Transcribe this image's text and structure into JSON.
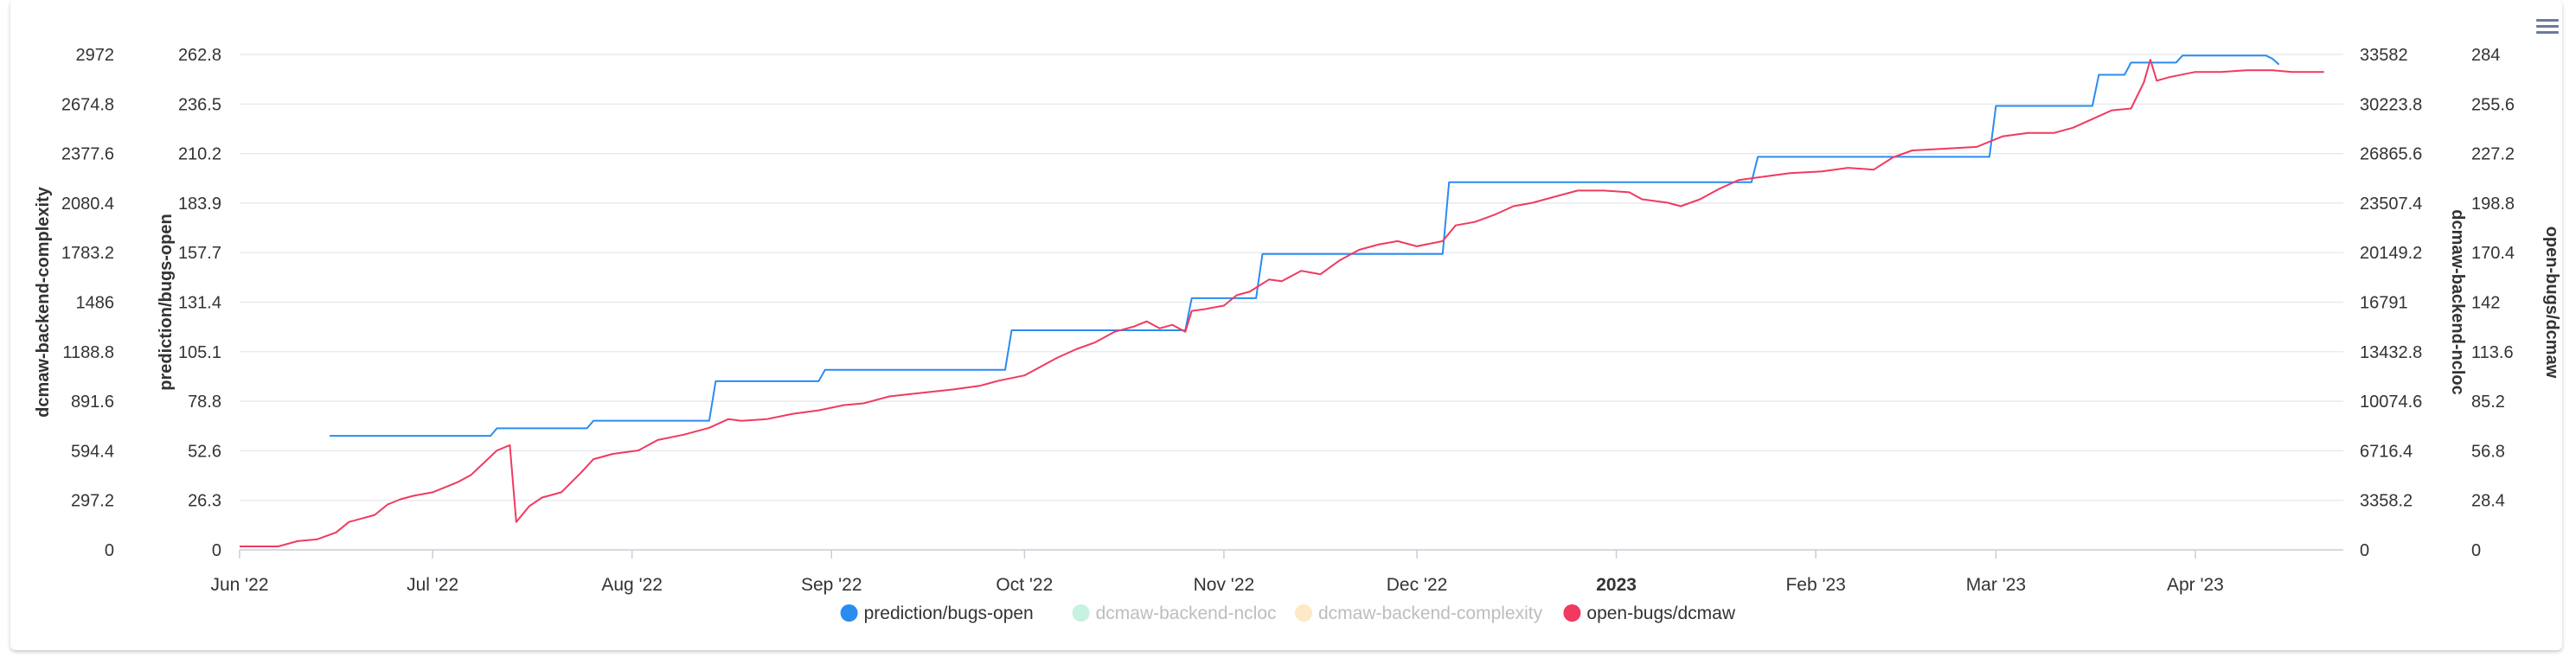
{
  "toolbar": {
    "menu_icon": "hamburger-menu-icon"
  },
  "chart_data": {
    "type": "line",
    "x_ticks": [
      "Jun '22",
      "Jul '22",
      "Aug '22",
      "Sep '22",
      "Oct '22",
      "Nov '22",
      "Dec '22",
      "2023",
      "Feb '23",
      "Mar '23",
      "Apr '23"
    ],
    "x_range": [
      "2022-06-01",
      "2023-04-24"
    ],
    "grid": true,
    "legend_placement": "bottom-center",
    "axes": [
      {
        "id": "complexity",
        "title": "dcmaw-backend-complexity",
        "side": "left",
        "min": 0,
        "max": 2972,
        "ticks": [
          "0",
          "297.2",
          "594.4",
          "891.6",
          "1188.8",
          "1486",
          "1783.2",
          "2080.4",
          "2377.6",
          "2674.8",
          "2972"
        ]
      },
      {
        "id": "prediction",
        "title": "prediction/bugs-open",
        "side": "left",
        "min": 0,
        "max": 262.8,
        "ticks": [
          "0",
          "26.3",
          "52.6",
          "78.8",
          "105.1",
          "131.4",
          "157.7",
          "183.9",
          "210.2",
          "236.5",
          "262.8"
        ]
      },
      {
        "id": "ncloc",
        "title": "dcmaw-backend-ncloc",
        "side": "right",
        "min": 0,
        "max": 33582,
        "ticks": [
          "0",
          "3358.2",
          "6716.4",
          "10074.6",
          "13432.8",
          "16791",
          "20149.2",
          "23507.4",
          "26865.6",
          "30223.8",
          "33582"
        ]
      },
      {
        "id": "openbugs",
        "title": "open-bugs/dcmaw",
        "side": "right",
        "min": 0,
        "max": 284,
        "ticks": [
          "0",
          "28.4",
          "56.8",
          "85.2",
          "113.6",
          "142",
          "170.4",
          "198.8",
          "227.2",
          "255.6",
          "284"
        ]
      }
    ],
    "series": [
      {
        "name": "prediction/bugs-open",
        "color": "#2a8cf0",
        "axis": "prediction",
        "visible": true,
        "step": true,
        "points": [
          [
            "2022-06-15",
            60.5
          ],
          [
            "2022-07-10",
            60.5
          ],
          [
            "2022-07-11",
            64.5
          ],
          [
            "2022-07-25",
            64.5
          ],
          [
            "2022-07-26",
            68.5
          ],
          [
            "2022-08-13",
            68.5
          ],
          [
            "2022-08-14",
            89.5
          ],
          [
            "2022-08-30",
            89.5
          ],
          [
            "2022-08-31",
            95.5
          ],
          [
            "2022-09-28",
            95.5
          ],
          [
            "2022-09-29",
            116.5
          ],
          [
            "2022-10-26",
            116.5
          ],
          [
            "2022-10-27",
            133.5
          ],
          [
            "2022-11-06",
            133.5
          ],
          [
            "2022-11-07",
            157
          ],
          [
            "2022-12-05",
            157
          ],
          [
            "2022-12-06",
            195
          ],
          [
            "2023-01-22",
            195
          ],
          [
            "2023-01-23",
            208.5
          ],
          [
            "2023-02-28",
            208.5
          ],
          [
            "2023-03-01",
            235.5
          ],
          [
            "2023-03-16",
            235.5
          ],
          [
            "2023-03-17",
            252
          ],
          [
            "2023-03-21",
            252
          ],
          [
            "2023-03-22",
            258.5
          ],
          [
            "2023-03-29",
            258.5
          ],
          [
            "2023-03-30",
            262.2
          ],
          [
            "2023-04-12",
            262.2
          ],
          [
            "2023-04-13",
            260.5
          ],
          [
            "2023-04-14",
            257.5
          ]
        ]
      },
      {
        "name": "dcmaw-backend-ncloc",
        "color": "#c6f2df",
        "axis": "ncloc",
        "visible": false,
        "points": []
      },
      {
        "name": "dcmaw-backend-complexity",
        "color": "#fde9c7",
        "axis": "complexity",
        "visible": false,
        "points": []
      },
      {
        "name": "open-bugs/dcmaw",
        "color": "#f03a5f",
        "axis": "openbugs",
        "visible": true,
        "points": [
          [
            "2022-06-01",
            2
          ],
          [
            "2022-06-04",
            2
          ],
          [
            "2022-06-07",
            2
          ],
          [
            "2022-06-10",
            5
          ],
          [
            "2022-06-13",
            6
          ],
          [
            "2022-06-16",
            10
          ],
          [
            "2022-06-18",
            16
          ],
          [
            "2022-06-20",
            18
          ],
          [
            "2022-06-22",
            20
          ],
          [
            "2022-06-24",
            26
          ],
          [
            "2022-06-26",
            29
          ],
          [
            "2022-06-28",
            31
          ],
          [
            "2022-07-01",
            33
          ],
          [
            "2022-07-03",
            36
          ],
          [
            "2022-07-05",
            39
          ],
          [
            "2022-07-07",
            43
          ],
          [
            "2022-07-09",
            50
          ],
          [
            "2022-07-11",
            57
          ],
          [
            "2022-07-13",
            60
          ],
          [
            "2022-07-14",
            16
          ],
          [
            "2022-07-16",
            25
          ],
          [
            "2022-07-18",
            30
          ],
          [
            "2022-07-21",
            33
          ],
          [
            "2022-07-24",
            44
          ],
          [
            "2022-07-26",
            52
          ],
          [
            "2022-07-29",
            55
          ],
          [
            "2022-08-02",
            57
          ],
          [
            "2022-08-05",
            63
          ],
          [
            "2022-08-09",
            66
          ],
          [
            "2022-08-13",
            70
          ],
          [
            "2022-08-16",
            75
          ],
          [
            "2022-08-18",
            74
          ],
          [
            "2022-08-22",
            75
          ],
          [
            "2022-08-26",
            78
          ],
          [
            "2022-08-30",
            80
          ],
          [
            "2022-09-03",
            83
          ],
          [
            "2022-09-06",
            84
          ],
          [
            "2022-09-10",
            88
          ],
          [
            "2022-09-15",
            90
          ],
          [
            "2022-09-20",
            92
          ],
          [
            "2022-09-24",
            94
          ],
          [
            "2022-09-27",
            97
          ],
          [
            "2022-10-01",
            100
          ],
          [
            "2022-10-03",
            104
          ],
          [
            "2022-10-06",
            110
          ],
          [
            "2022-10-09",
            115
          ],
          [
            "2022-10-12",
            119
          ],
          [
            "2022-10-15",
            125
          ],
          [
            "2022-10-18",
            128
          ],
          [
            "2022-10-20",
            131
          ],
          [
            "2022-10-22",
            127
          ],
          [
            "2022-10-24",
            129
          ],
          [
            "2022-10-26",
            125
          ],
          [
            "2022-10-27",
            137
          ],
          [
            "2022-10-29",
            138
          ],
          [
            "2022-11-01",
            140
          ],
          [
            "2022-11-03",
            146
          ],
          [
            "2022-11-05",
            148
          ],
          [
            "2022-11-08",
            155
          ],
          [
            "2022-11-10",
            154
          ],
          [
            "2022-11-13",
            160
          ],
          [
            "2022-11-16",
            158
          ],
          [
            "2022-11-19",
            166
          ],
          [
            "2022-11-22",
            172
          ],
          [
            "2022-11-25",
            175
          ],
          [
            "2022-11-28",
            177
          ],
          [
            "2022-12-01",
            174
          ],
          [
            "2022-12-05",
            177
          ],
          [
            "2022-12-07",
            186
          ],
          [
            "2022-12-10",
            188
          ],
          [
            "2022-12-13",
            192
          ],
          [
            "2022-12-16",
            197
          ],
          [
            "2022-12-19",
            199
          ],
          [
            "2022-12-22",
            202
          ],
          [
            "2022-12-26",
            206
          ],
          [
            "2022-12-30",
            206
          ],
          [
            "2023-01-03",
            205
          ],
          [
            "2023-01-05",
            201
          ],
          [
            "2023-01-09",
            199
          ],
          [
            "2023-01-11",
            197
          ],
          [
            "2023-01-14",
            201
          ],
          [
            "2023-01-17",
            207
          ],
          [
            "2023-01-20",
            212
          ],
          [
            "2023-01-24",
            214
          ],
          [
            "2023-01-28",
            216
          ],
          [
            "2023-02-02",
            217
          ],
          [
            "2023-02-06",
            219
          ],
          [
            "2023-02-10",
            218
          ],
          [
            "2023-02-13",
            225
          ],
          [
            "2023-02-16",
            229
          ],
          [
            "2023-02-21",
            230
          ],
          [
            "2023-02-26",
            231
          ],
          [
            "2023-03-02",
            237
          ],
          [
            "2023-03-06",
            239
          ],
          [
            "2023-03-10",
            239
          ],
          [
            "2023-03-13",
            242
          ],
          [
            "2023-03-16",
            247
          ],
          [
            "2023-03-19",
            252
          ],
          [
            "2023-03-22",
            253
          ],
          [
            "2023-03-24",
            268
          ],
          [
            "2023-03-25",
            281
          ],
          [
            "2023-03-26",
            269
          ],
          [
            "2023-03-28",
            271
          ],
          [
            "2023-04-01",
            274
          ],
          [
            "2023-04-05",
            274
          ],
          [
            "2023-04-09",
            275
          ],
          [
            "2023-04-13",
            275
          ],
          [
            "2023-04-16",
            274
          ],
          [
            "2023-04-21",
            274
          ]
        ]
      }
    ]
  }
}
